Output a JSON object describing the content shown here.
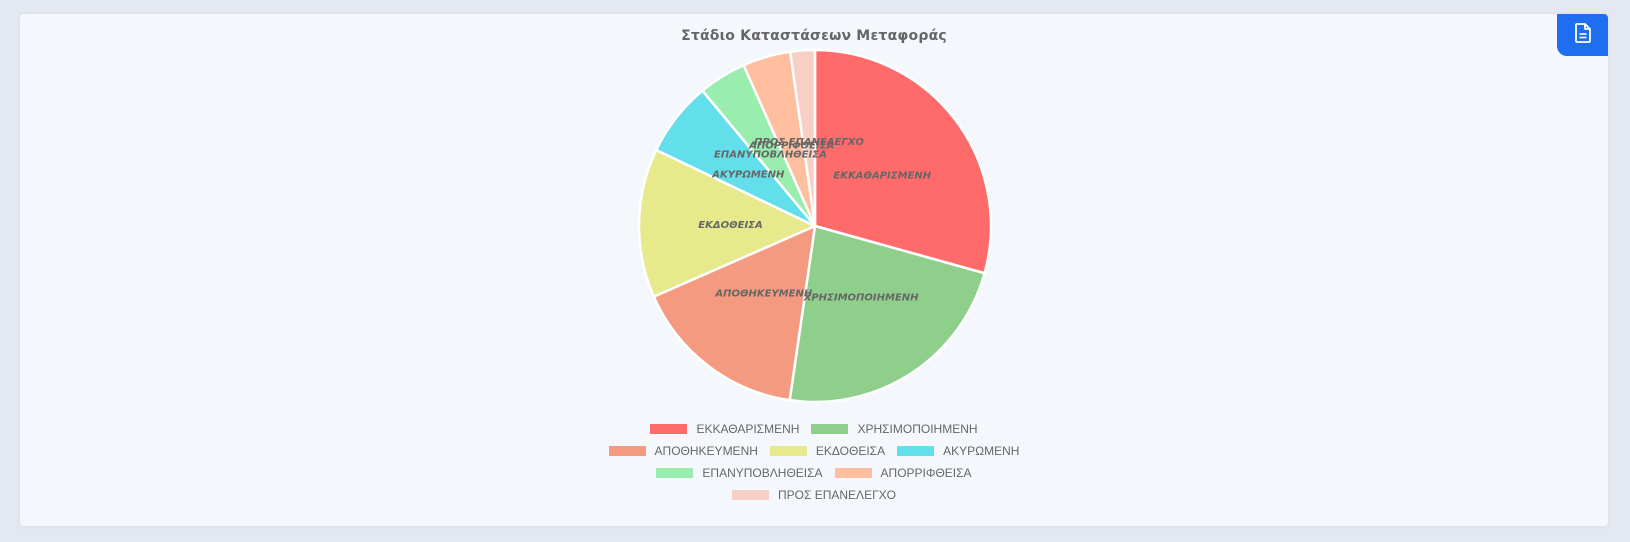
{
  "chart_data": {
    "type": "pie",
    "title": "Στάδιο Καταστάσεων Μεταφοράς",
    "categories": [
      "ΕΚΚΑΘΑΡΙΣΜΕΝΗ",
      "ΧΡΗΣΙΜΟΠΟΙΗΜΕΝΗ",
      "ΑΠΟΘΗΚΕΥΜΕΝΗ",
      "ΕΚΔΟΘΕΙΣΑ",
      "ΑΚΥΡΩΜΕΝΗ",
      "ΕΠΑΝΥΠΟΒΛΗΘΕΙΣΑ",
      "ΑΠΟΡΡΙΦΘΕΙΣΑ",
      "ΠΡΟΣ ΕΠΑΝΕΛΕΓΧΟ"
    ],
    "values": [
      30,
      23.5,
      16.5,
      14,
      7,
      4.5,
      4.5,
      2.3
    ],
    "colors": [
      "#ff6b6b",
      "#8ed08b",
      "#f39a80",
      "#e6e98c",
      "#63dfec",
      "#99edaf",
      "#ffbe9e",
      "#f8cfc4"
    ],
    "legend": "bottom"
  },
  "export_button": {
    "icon": "document-icon"
  }
}
